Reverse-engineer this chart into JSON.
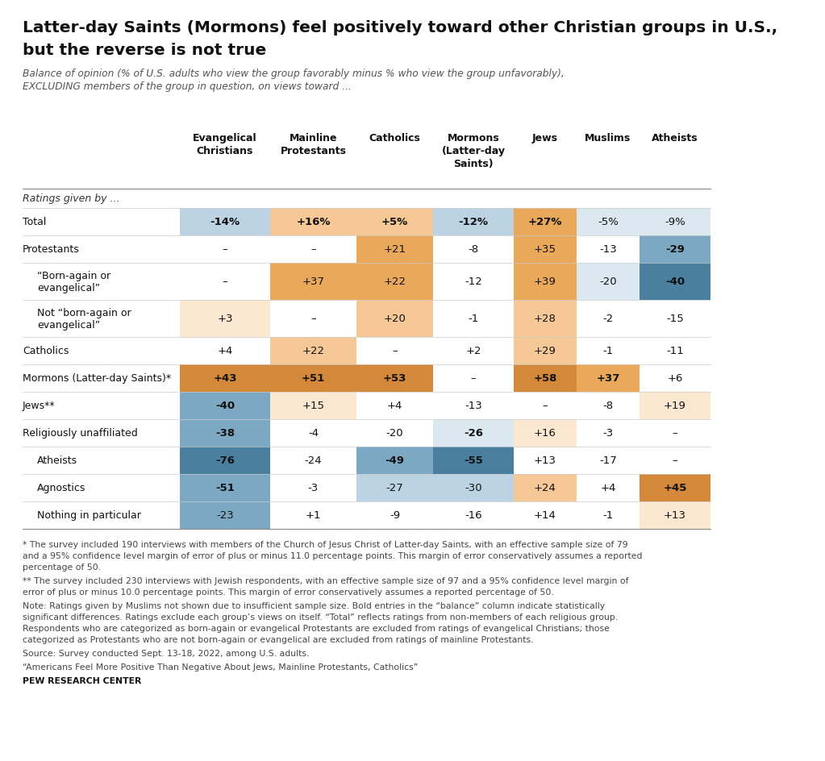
{
  "title_line1": "Latter-day Saints (Mormons) feel positively toward other Christian groups in U.S.,",
  "title_line2": "but the reverse is not true",
  "subtitle_line1": "Balance of opinion (% of U.S. adults who view the group favorably minus % who view the group unfavorably),",
  "subtitle_line2": "EXCLUDING members of the group in question, on views toward ...",
  "col_headers": [
    "Evangelical\nChristians",
    "Mainline\nProtestants",
    "Catholics",
    "Mormons\n(Latter-day\nSaints)",
    "Jews",
    "Muslims",
    "Atheists"
  ],
  "row_labels": [
    "Ratings given by ...",
    "Total",
    "Protestants",
    "“Born-again or\nevangelical”",
    "Not “born-again or\nevangelical”",
    "Catholics",
    "Mormons (Latter-day Saints)*",
    "Jews**",
    "Religiously unaffiliated",
    "Atheists",
    "Agnostics",
    "Nothing in particular"
  ],
  "row_indent": [
    false,
    false,
    false,
    true,
    true,
    false,
    false,
    false,
    false,
    true,
    true,
    true
  ],
  "data": [
    [
      null,
      null,
      null,
      null,
      null,
      null,
      null
    ],
    [
      "-14%",
      "+16%",
      "+5%",
      "-12%",
      "+27%",
      "-5%",
      "-9%"
    ],
    [
      "–",
      "–",
      "+21",
      "-8",
      "+35",
      "-13",
      "-29"
    ],
    [
      "–",
      "+37",
      "+22",
      "-12",
      "+39",
      "-20",
      "-40"
    ],
    [
      "+3",
      "–",
      "+20",
      "-1",
      "+28",
      "-2",
      "-15"
    ],
    [
      "+4",
      "+22",
      "–",
      "+2",
      "+29",
      "-1",
      "-11"
    ],
    [
      "+43",
      "+51",
      "+53",
      "–",
      "+58",
      "+37",
      "+6"
    ],
    [
      "-40",
      "+15",
      "+4",
      "-13",
      "–",
      "-8",
      "+19"
    ],
    [
      "-38",
      "-4",
      "-20",
      "-26",
      "+16",
      "-3",
      "–"
    ],
    [
      "-76",
      "-24",
      "-49",
      "-55",
      "+13",
      "-17",
      "–"
    ],
    [
      "-51",
      "-3",
      "-27",
      "-30",
      "+24",
      "+4",
      "+45"
    ],
    [
      "-23",
      "+1",
      "-9",
      "-16",
      "+14",
      "-1",
      "+13"
    ]
  ],
  "cell_colors": [
    [
      "none",
      "none",
      "none",
      "none",
      "none",
      "none",
      "none"
    ],
    [
      "blue_light",
      "orange_light",
      "orange_light",
      "blue_light",
      "orange_medium",
      "blue_pale",
      "blue_pale"
    ],
    [
      "none",
      "none",
      "orange_medium",
      "none",
      "orange_medium",
      "none",
      "blue_medium"
    ],
    [
      "none",
      "orange_medium",
      "orange_medium",
      "none",
      "orange_medium",
      "blue_pale",
      "blue_dark"
    ],
    [
      "orange_pale",
      "none",
      "orange_light",
      "none",
      "orange_light",
      "none",
      "none"
    ],
    [
      "none",
      "orange_light",
      "none",
      "none",
      "orange_light",
      "none",
      "none"
    ],
    [
      "orange_dark",
      "orange_dark",
      "orange_dark",
      "none",
      "orange_dark",
      "orange_medium",
      "none"
    ],
    [
      "blue_medium",
      "orange_pale",
      "none",
      "none",
      "none",
      "none",
      "orange_pale"
    ],
    [
      "blue_medium",
      "none",
      "none",
      "blue_pale",
      "orange_pale",
      "none",
      "none"
    ],
    [
      "blue_dark",
      "none",
      "blue_medium",
      "blue_dark",
      "none",
      "none",
      "none"
    ],
    [
      "blue_medium",
      "none",
      "blue_light",
      "blue_light",
      "orange_light",
      "none",
      "orange_dark"
    ],
    [
      "blue_medium",
      "none",
      "none",
      "none",
      "none",
      "none",
      "orange_pale"
    ]
  ],
  "bold_cells": [
    [
      false,
      false,
      false,
      false,
      false,
      false,
      false
    ],
    [
      true,
      true,
      true,
      true,
      true,
      false,
      false
    ],
    [
      false,
      false,
      false,
      false,
      false,
      false,
      true
    ],
    [
      false,
      false,
      false,
      false,
      false,
      false,
      true
    ],
    [
      false,
      false,
      false,
      false,
      false,
      false,
      false
    ],
    [
      false,
      false,
      false,
      false,
      false,
      false,
      false
    ],
    [
      true,
      true,
      true,
      false,
      true,
      true,
      false
    ],
    [
      true,
      false,
      false,
      false,
      false,
      false,
      false
    ],
    [
      true,
      false,
      false,
      true,
      false,
      false,
      false
    ],
    [
      true,
      false,
      true,
      true,
      false,
      false,
      false
    ],
    [
      true,
      false,
      false,
      false,
      false,
      false,
      true
    ],
    [
      false,
      false,
      false,
      false,
      false,
      false,
      false
    ]
  ],
  "footnote_blocks": [
    {
      "text": "* The survey included 190 interviews with members of the Church of Jesus Christ of Latter-day Saints, with an effective sample size of 79\nand a 95% confidence level margin of error of plus or minus 11.0 percentage points. This margin of error conservatively assumes a reported\npercentage of 50.",
      "bold": false
    },
    {
      "text": "** The survey included 230 interviews with Jewish respondents, with an effective sample size of 97 and a 95% confidence level margin of\nerror of plus or minus 10.0 percentage points. This margin of error conservatively assumes a reported percentage of 50.",
      "bold": false
    },
    {
      "text": "Note: Ratings given by Muslims not shown due to insufficient sample size. Bold entries in the “balance” column indicate statistically\nsignificant differences. Ratings exclude each group’s views on itself. “Total” reflects ratings from non-members of each religious group.\nRespondents who are categorized as born-again or evangelical Protestants are excluded from ratings of evangelical Christians; those\ncategorized as Protestants who are not born-again or evangelical are excluded from ratings of mainline Protestants.",
      "bold": false
    },
    {
      "text": "Source: Survey conducted Sept. 13-18, 2022, among U.S. adults.",
      "bold": false
    },
    {
      "text": "“Americans Feel More Positive Than Negative About Jews, Mainline Protestants, Catholics”",
      "bold": false
    },
    {
      "text": "PEW RESEARCH CENTER",
      "bold": true
    }
  ],
  "color_map": {
    "none": "#ffffff",
    "orange_pale": "#fce8d0",
    "orange_light": "#f5c895",
    "orange_medium": "#e9a85a",
    "orange_dark": "#d4883a",
    "blue_pale": "#dce8f0",
    "blue_light": "#bcd3e3",
    "blue_medium": "#7da8c3",
    "blue_dark": "#4a7fa0"
  }
}
